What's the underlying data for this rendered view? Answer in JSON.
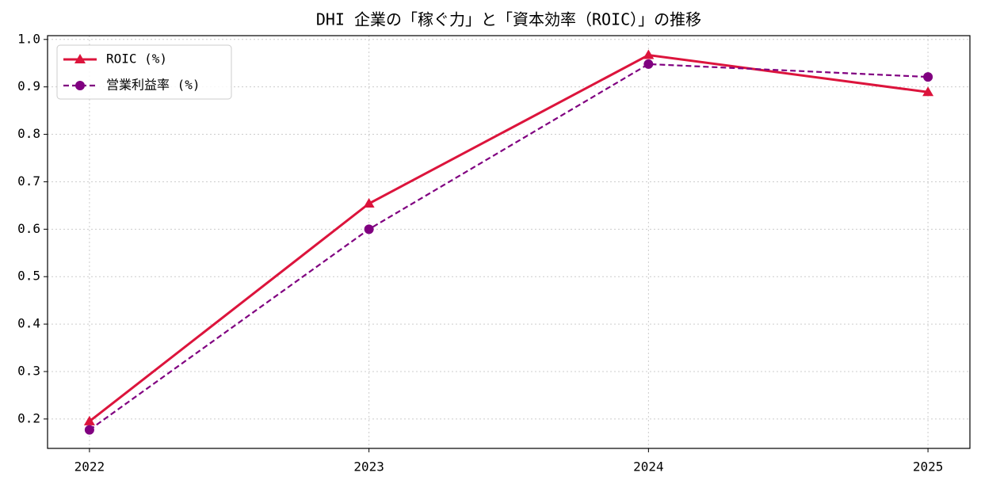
{
  "chart_data": {
    "type": "line",
    "title": "DHI 企業の「稼ぐ力」と「資本効率（ROIC）」の推移",
    "x": [
      2022,
      2023,
      2024,
      2025
    ],
    "xlim": [
      2021.85,
      2025.15
    ],
    "xticks": [
      2022,
      2023,
      2024,
      2025
    ],
    "ylim": [
      0.138,
      1.008
    ],
    "yticks": [
      0.2,
      0.3,
      0.4,
      0.5,
      0.6,
      0.7,
      0.8,
      0.9,
      {
        "value": 1,
        "label": "1.0"
      }
    ],
    "grid": true,
    "legend": "upper left",
    "series": [
      {
        "name": "ROIC (%)",
        "color": "#dc143c",
        "linestyle": "solid",
        "marker": "triangle",
        "values": [
          0.195,
          0.654,
          0.967,
          0.889
        ]
      },
      {
        "name": "営業利益率 (%)",
        "color": "#800080",
        "linestyle": "dashed",
        "marker": "circle",
        "values": [
          0.177,
          0.6,
          0.948,
          0.921
        ]
      }
    ]
  }
}
